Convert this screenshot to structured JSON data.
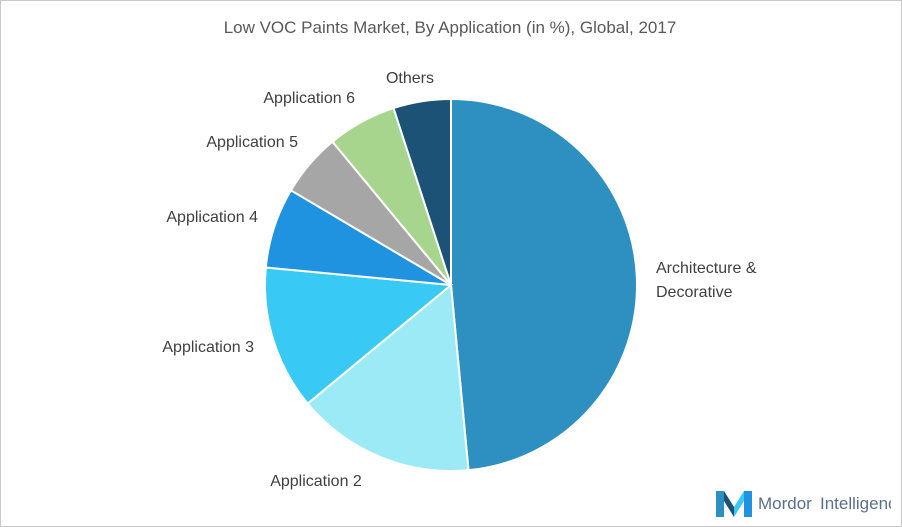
{
  "title": "Low VOC Paints Market, By Application (in %), Global, 2017",
  "chart_data": {
    "type": "pie",
    "title": "Low VOC Paints Market, By Application (in %), Global, 2017",
    "start_angle_deg": 0,
    "direction": "clockwise",
    "slices": [
      {
        "label": [
          "Architecture &",
          "Decorative"
        ],
        "value": 48.5,
        "color": "#2e8fc1"
      },
      {
        "label": [
          "Application 2"
        ],
        "value": 15.5,
        "color": "#9ceaf5"
      },
      {
        "label": [
          "Application 3"
        ],
        "value": 12.5,
        "color": "#39c9f5"
      },
      {
        "label": [
          "Application 4"
        ],
        "value": 7.0,
        "color": "#1f93e0"
      },
      {
        "label": [
          "Application 5"
        ],
        "value": 5.5,
        "color": "#a6a6a6"
      },
      {
        "label": [
          "Application 6"
        ],
        "value": 6.0,
        "color": "#a8d58e"
      },
      {
        "label": [
          "Others"
        ],
        "value": 5.0,
        "color": "#1b5276"
      }
    ]
  },
  "logo": {
    "text_1": "Mordor",
    "text_2": "Intelligence"
  }
}
